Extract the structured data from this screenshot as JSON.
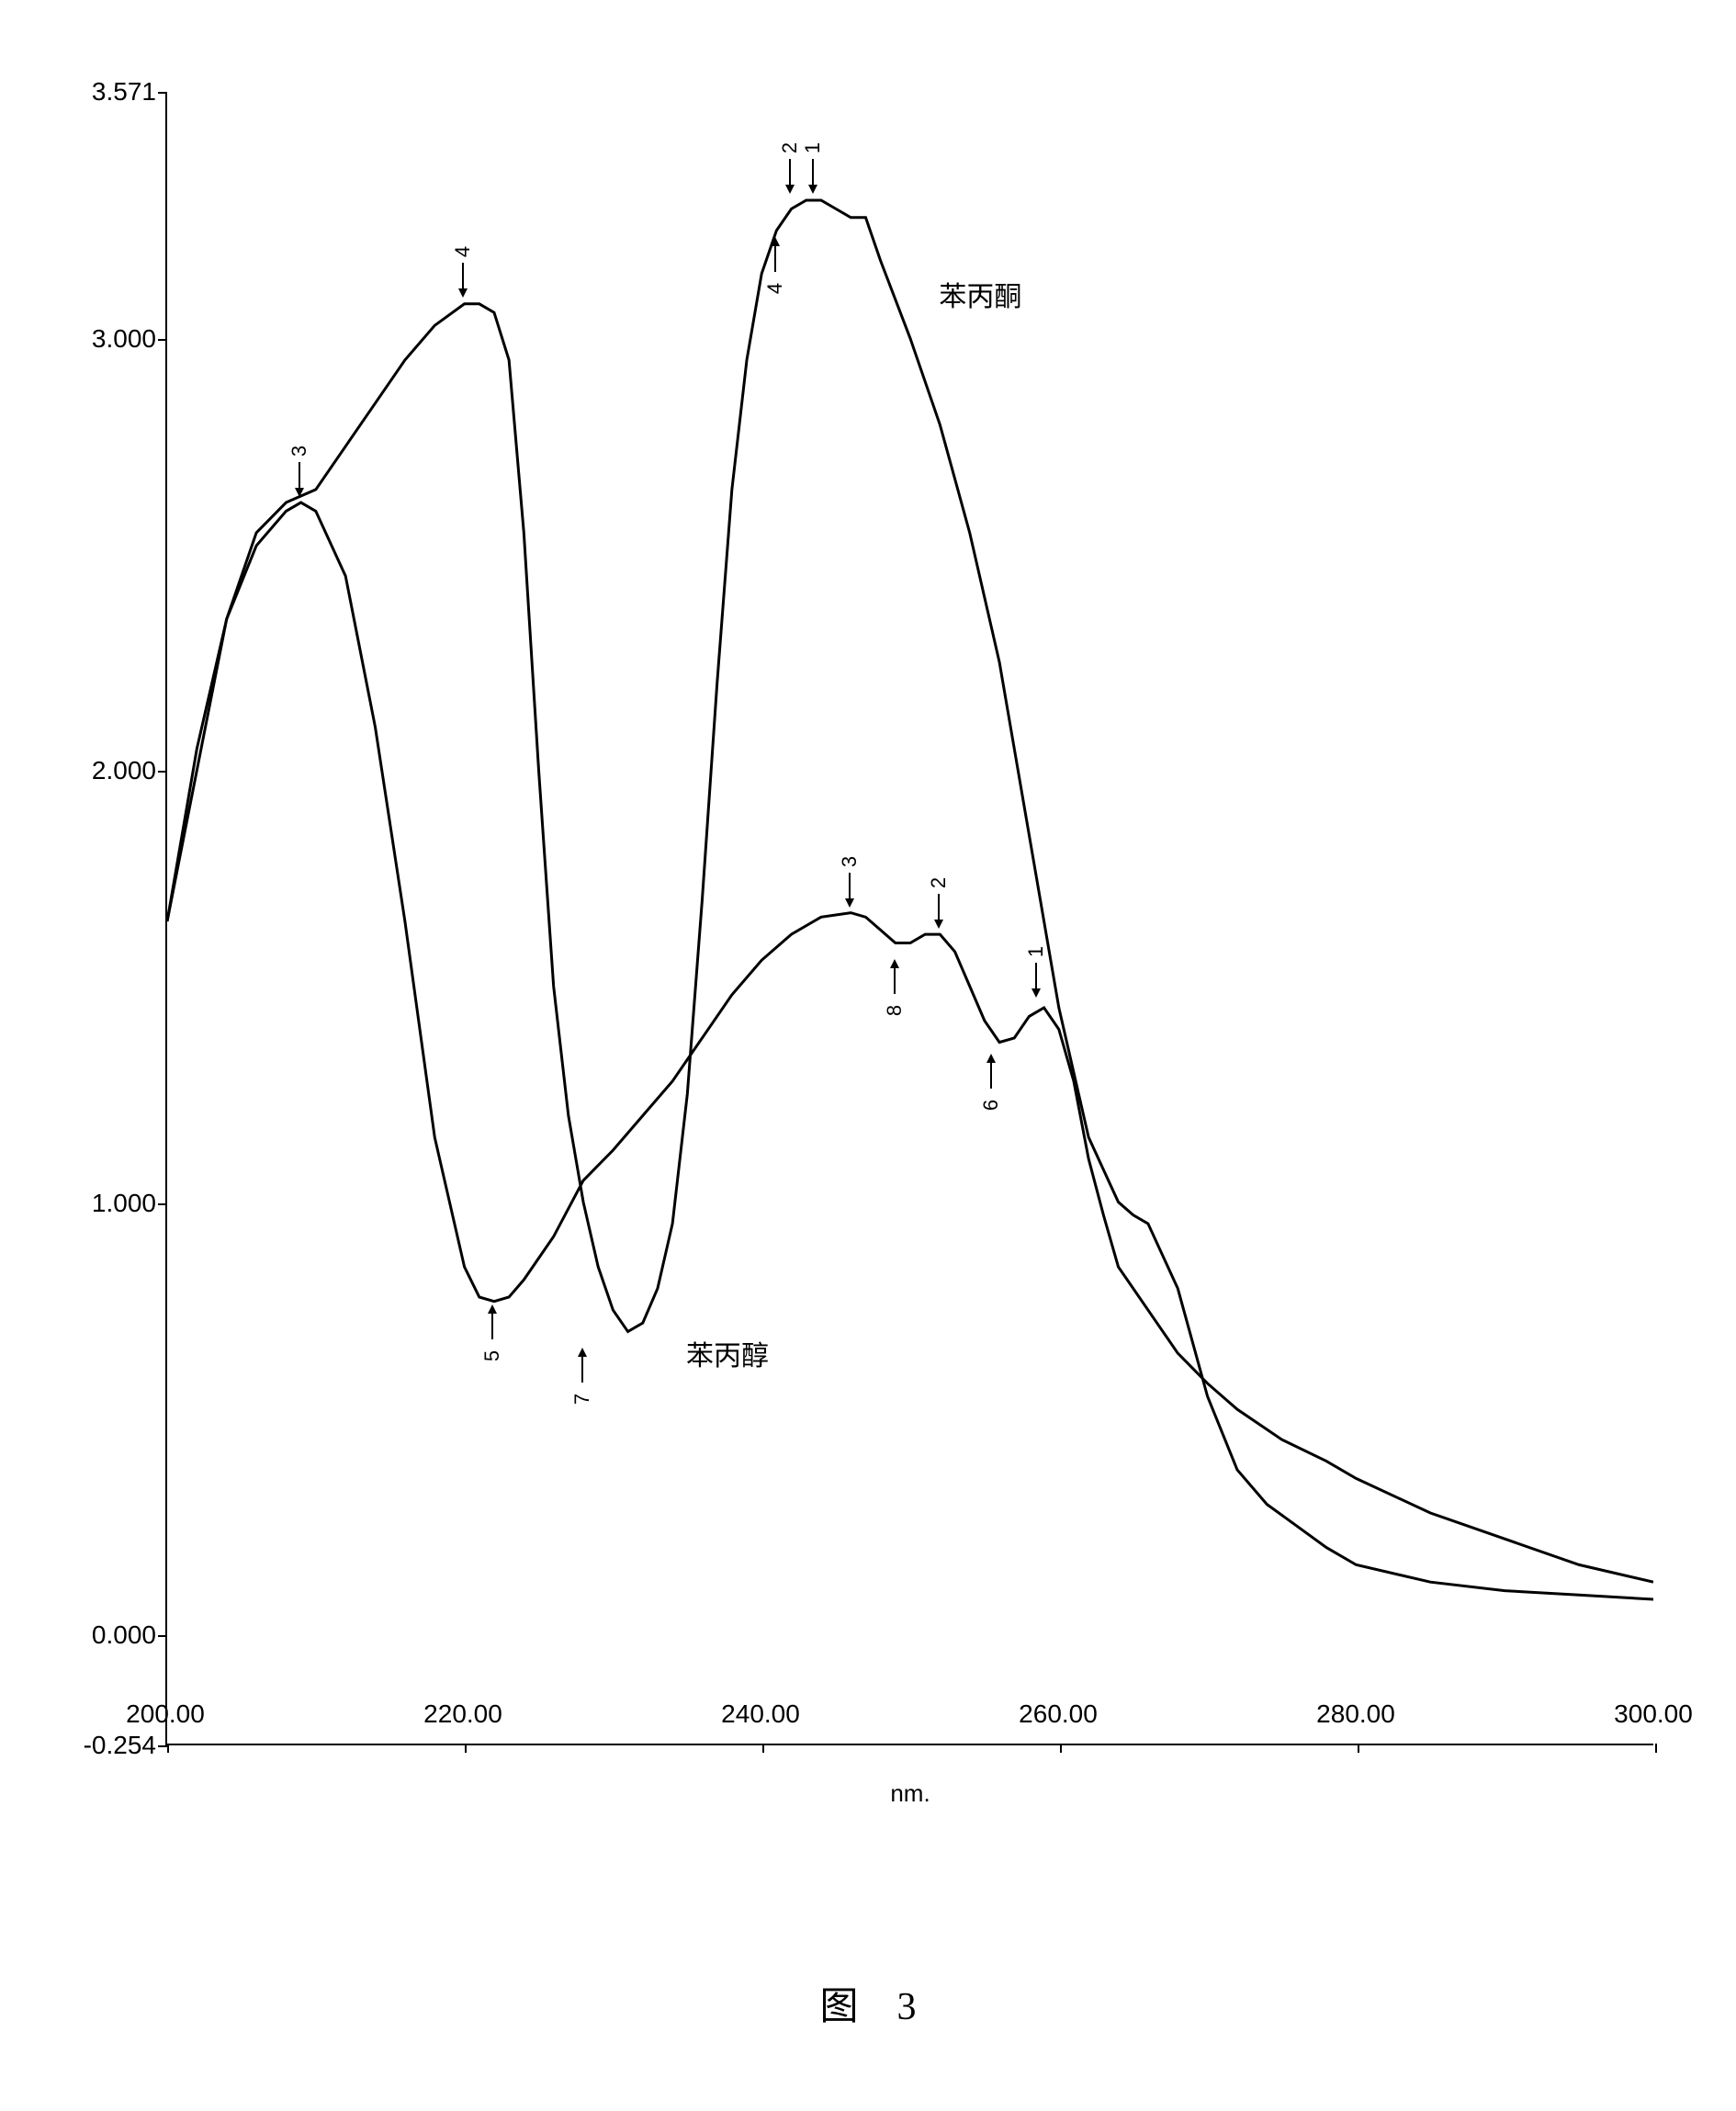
{
  "chart": {
    "type": "line",
    "xlabel": "nm.",
    "label_fontsize": 26,
    "xlim": [
      200,
      300
    ],
    "ylim": [
      -0.254,
      3.571
    ],
    "x_ticks": [
      200,
      220,
      240,
      260,
      280,
      300
    ],
    "x_tick_labels": [
      "200.00",
      "220.00",
      "240.00",
      "260.00",
      "280.00",
      "300.00"
    ],
    "y_ticks": [
      -0.254,
      0,
      1,
      2,
      3,
      3.571
    ],
    "y_tick_labels": [
      "-0.254",
      "0.000",
      "1.000",
      "2.000",
      "3.000",
      "3.571"
    ],
    "background_color": "#ffffff",
    "line_color": "#000000",
    "line_width": 3,
    "series": [
      {
        "name": "苯丙酮",
        "label_pos": {
          "x": 252,
          "y": 3.15
        },
        "points": [
          [
            200,
            1.65
          ],
          [
            202,
            2.0
          ],
          [
            204,
            2.35
          ],
          [
            206,
            2.55
          ],
          [
            208,
            2.62
          ],
          [
            210,
            2.65
          ],
          [
            212,
            2.75
          ],
          [
            214,
            2.85
          ],
          [
            216,
            2.95
          ],
          [
            218,
            3.03
          ],
          [
            220,
            3.08
          ],
          [
            221,
            3.08
          ],
          [
            222,
            3.06
          ],
          [
            223,
            2.95
          ],
          [
            224,
            2.55
          ],
          [
            225,
            2.0
          ],
          [
            226,
            1.5
          ],
          [
            227,
            1.2
          ],
          [
            228,
            1.0
          ],
          [
            229,
            0.85
          ],
          [
            230,
            0.75
          ],
          [
            231,
            0.7
          ],
          [
            232,
            0.72
          ],
          [
            233,
            0.8
          ],
          [
            234,
            0.95
          ],
          [
            235,
            1.25
          ],
          [
            236,
            1.7
          ],
          [
            237,
            2.2
          ],
          [
            238,
            2.65
          ],
          [
            239,
            2.95
          ],
          [
            240,
            3.15
          ],
          [
            241,
            3.25
          ],
          [
            242,
            3.3
          ],
          [
            243,
            3.32
          ],
          [
            244,
            3.32
          ],
          [
            245,
            3.3
          ],
          [
            246,
            3.28
          ],
          [
            247,
            3.28
          ],
          [
            248,
            3.18
          ],
          [
            250,
            3.0
          ],
          [
            252,
            2.8
          ],
          [
            254,
            2.55
          ],
          [
            256,
            2.25
          ],
          [
            258,
            1.85
          ],
          [
            260,
            1.45
          ],
          [
            262,
            1.15
          ],
          [
            264,
            1.0
          ],
          [
            265,
            0.97
          ],
          [
            266,
            0.95
          ],
          [
            268,
            0.8
          ],
          [
            270,
            0.55
          ],
          [
            272,
            0.38
          ],
          [
            274,
            0.3
          ],
          [
            276,
            0.25
          ],
          [
            278,
            0.2
          ],
          [
            280,
            0.16
          ],
          [
            285,
            0.12
          ],
          [
            290,
            0.1
          ],
          [
            295,
            0.09
          ],
          [
            300,
            0.08
          ]
        ],
        "peaks": [
          {
            "num": "4",
            "x": 220,
            "y": 3.08,
            "dir": "down"
          },
          {
            "num": "7",
            "x": 228,
            "y": 0.68,
            "dir": "up"
          },
          {
            "num": "1",
            "x": 243.5,
            "y": 3.32,
            "dir": "down"
          },
          {
            "num": "2",
            "x": 242,
            "y": 3.32,
            "dir": "down"
          },
          {
            "num": "4",
            "x": 241,
            "y": 3.25,
            "dir": "up"
          }
        ]
      },
      {
        "name": "苯丙醇",
        "label_pos": {
          "x": 235,
          "y": 0.7
        },
        "points": [
          [
            200,
            1.65
          ],
          [
            202,
            2.05
          ],
          [
            204,
            2.35
          ],
          [
            206,
            2.52
          ],
          [
            208,
            2.6
          ],
          [
            209,
            2.62
          ],
          [
            210,
            2.6
          ],
          [
            212,
            2.45
          ],
          [
            214,
            2.1
          ],
          [
            216,
            1.65
          ],
          [
            218,
            1.15
          ],
          [
            220,
            0.85
          ],
          [
            221,
            0.78
          ],
          [
            222,
            0.77
          ],
          [
            223,
            0.78
          ],
          [
            224,
            0.82
          ],
          [
            226,
            0.92
          ],
          [
            228,
            1.05
          ],
          [
            230,
            1.12
          ],
          [
            232,
            1.2
          ],
          [
            234,
            1.28
          ],
          [
            236,
            1.38
          ],
          [
            238,
            1.48
          ],
          [
            240,
            1.56
          ],
          [
            242,
            1.62
          ],
          [
            244,
            1.66
          ],
          [
            246,
            1.67
          ],
          [
            247,
            1.66
          ],
          [
            248,
            1.63
          ],
          [
            249,
            1.6
          ],
          [
            250,
            1.6
          ],
          [
            251,
            1.62
          ],
          [
            252,
            1.62
          ],
          [
            253,
            1.58
          ],
          [
            254,
            1.5
          ],
          [
            255,
            1.42
          ],
          [
            256,
            1.37
          ],
          [
            257,
            1.38
          ],
          [
            258,
            1.43
          ],
          [
            259,
            1.45
          ],
          [
            260,
            1.4
          ],
          [
            261,
            1.28
          ],
          [
            262,
            1.1
          ],
          [
            263,
            0.97
          ],
          [
            264,
            0.85
          ],
          [
            266,
            0.75
          ],
          [
            268,
            0.65
          ],
          [
            270,
            0.58
          ],
          [
            272,
            0.52
          ],
          [
            275,
            0.45
          ],
          [
            278,
            0.4
          ],
          [
            280,
            0.36
          ],
          [
            285,
            0.28
          ],
          [
            290,
            0.22
          ],
          [
            295,
            0.16
          ],
          [
            300,
            0.12
          ]
        ],
        "peaks": [
          {
            "num": "3",
            "x": 209,
            "y": 2.62,
            "dir": "down"
          },
          {
            "num": "5",
            "x": 222,
            "y": 0.78,
            "dir": "up"
          },
          {
            "num": "3",
            "x": 246,
            "y": 1.67,
            "dir": "down"
          },
          {
            "num": "8",
            "x": 249,
            "y": 1.58,
            "dir": "up"
          },
          {
            "num": "2",
            "x": 252,
            "y": 1.62,
            "dir": "down"
          },
          {
            "num": "6",
            "x": 255.5,
            "y": 1.36,
            "dir": "up"
          },
          {
            "num": "1",
            "x": 258.5,
            "y": 1.46,
            "dir": "down"
          }
        ]
      }
    ]
  },
  "caption": "图　3",
  "caption_fontsize": 42
}
